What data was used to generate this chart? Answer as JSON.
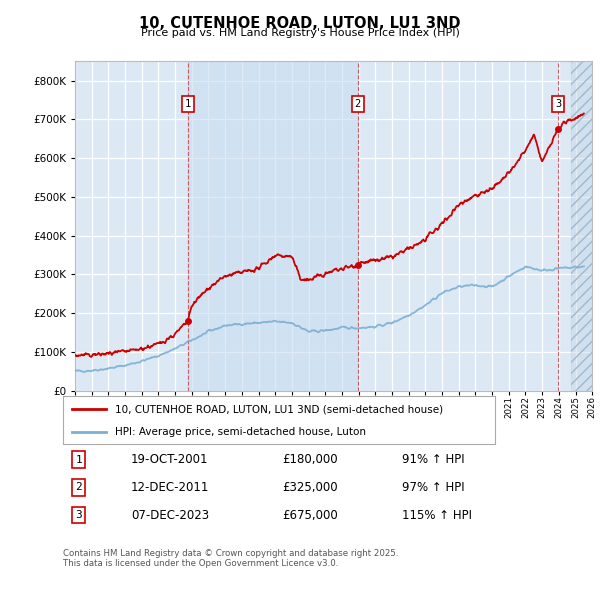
{
  "title": "10, CUTENHOE ROAD, LUTON, LU1 3ND",
  "subtitle": "Price paid vs. HM Land Registry's House Price Index (HPI)",
  "bg_color": "#dce9f5",
  "shaded_bg": "#c8dcf0",
  "red_color": "#cc0000",
  "blue_color": "#7bafd4",
  "legend_label_red": "10, CUTENHOE ROAD, LUTON, LU1 3ND (semi-detached house)",
  "legend_label_blue": "HPI: Average price, semi-detached house, Luton",
  "purchases": [
    {
      "label": "1",
      "date_num": 2001.79,
      "price": 180000,
      "date_str": "19-OCT-2001",
      "pct": "91%",
      "dir": "↑"
    },
    {
      "label": "2",
      "date_num": 2011.95,
      "price": 325000,
      "date_str": "12-DEC-2011",
      "pct": "97%",
      "dir": "↑"
    },
    {
      "label": "3",
      "date_num": 2023.95,
      "price": 675000,
      "date_str": "07-DEC-2023",
      "pct": "115%",
      "dir": "↑"
    }
  ],
  "footer1": "Contains HM Land Registry data © Crown copyright and database right 2025.",
  "footer2": "This data is licensed under the Open Government Licence v3.0.",
  "xmin": 1995,
  "xmax": 2026,
  "ymin": 0,
  "ymax": 850000,
  "hatch_start": 2024.7
}
